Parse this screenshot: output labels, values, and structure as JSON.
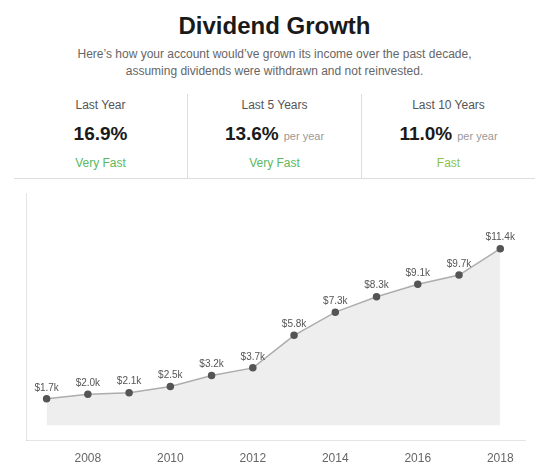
{
  "chart_data": {
    "type": "area",
    "title": "Dividend Growth",
    "subtitle": [
      "Here’s how your account would’ve grown its income over the past decade,",
      "assuming dividends were withdrawn and not reinvested."
    ],
    "annotations": [
      {
        "period": "Last Year",
        "value": "16.9%",
        "rating": "Very Fast",
        "color": "#5cb85c"
      },
      {
        "period": "Last 5 Years",
        "value": "13.6%",
        "suffix": "per year",
        "rating": "Very Fast",
        "color": "#5cb85c"
      },
      {
        "period": "Last 10 Years",
        "value": "11.0%",
        "suffix": "per year",
        "rating": "Fast",
        "color": "#8bc34a"
      }
    ],
    "x": [
      2007,
      2008,
      2009,
      2010,
      2011,
      2012,
      2013,
      2014,
      2015,
      2016,
      2017,
      2018
    ],
    "values": [
      1.7,
      2.0,
      2.1,
      2.5,
      3.2,
      3.7,
      5.8,
      7.3,
      8.3,
      9.1,
      9.7,
      11.4
    ],
    "value_labels": [
      "$1.7k",
      "$2.0k",
      "$2.1k",
      "$2.5k",
      "$3.2k",
      "$3.7k",
      "$5.8k",
      "$7.3k",
      "$8.3k",
      "$9.1k",
      "$9.7k",
      "$11.4k"
    ],
    "data_labels": true,
    "color": "#555555",
    "xlim": [
      2006.5,
      2018.6
    ],
    "xticks": [
      2008,
      2010,
      2012,
      2014,
      2016,
      2018
    ],
    "ylim": [
      -1,
      15
    ],
    "tick_labels": "x",
    "grid": false
  }
}
